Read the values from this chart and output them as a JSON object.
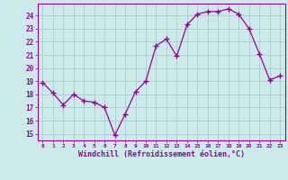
{
  "x": [
    0,
    1,
    2,
    3,
    4,
    5,
    6,
    7,
    8,
    9,
    10,
    11,
    12,
    13,
    14,
    15,
    16,
    17,
    18,
    19,
    20,
    21,
    22,
    23
  ],
  "y": [
    18.9,
    18.1,
    17.2,
    18.0,
    17.5,
    17.4,
    17.0,
    14.9,
    16.5,
    18.2,
    19.0,
    21.7,
    22.2,
    20.9,
    23.3,
    24.1,
    24.3,
    24.3,
    24.5,
    24.1,
    23.0,
    21.1,
    19.1,
    19.4
  ],
  "line_color": "#990099",
  "marker": "+",
  "marker_size": 4,
  "bg_color": "#cceaea",
  "grid_color": "#aacccc",
  "xlabel": "Windchill (Refroidissement éolien,°C)",
  "xlabel_color": "#990099",
  "tick_color": "#990099",
  "ylim": [
    14.5,
    24.9
  ],
  "xlim": [
    -0.5,
    23.5
  ],
  "yticks": [
    15,
    16,
    17,
    18,
    19,
    20,
    21,
    22,
    23,
    24
  ],
  "xticks": [
    0,
    1,
    2,
    3,
    4,
    5,
    6,
    7,
    8,
    9,
    10,
    11,
    12,
    13,
    14,
    15,
    16,
    17,
    18,
    19,
    20,
    21,
    22,
    23
  ],
  "xtick_labels": [
    "0",
    "1",
    "2",
    "3",
    "4",
    "5",
    "6",
    "7",
    "8",
    "9",
    "10",
    "11",
    "12",
    "13",
    "14",
    "15",
    "16",
    "17",
    "18",
    "19",
    "20",
    "21",
    "22",
    "23"
  ]
}
